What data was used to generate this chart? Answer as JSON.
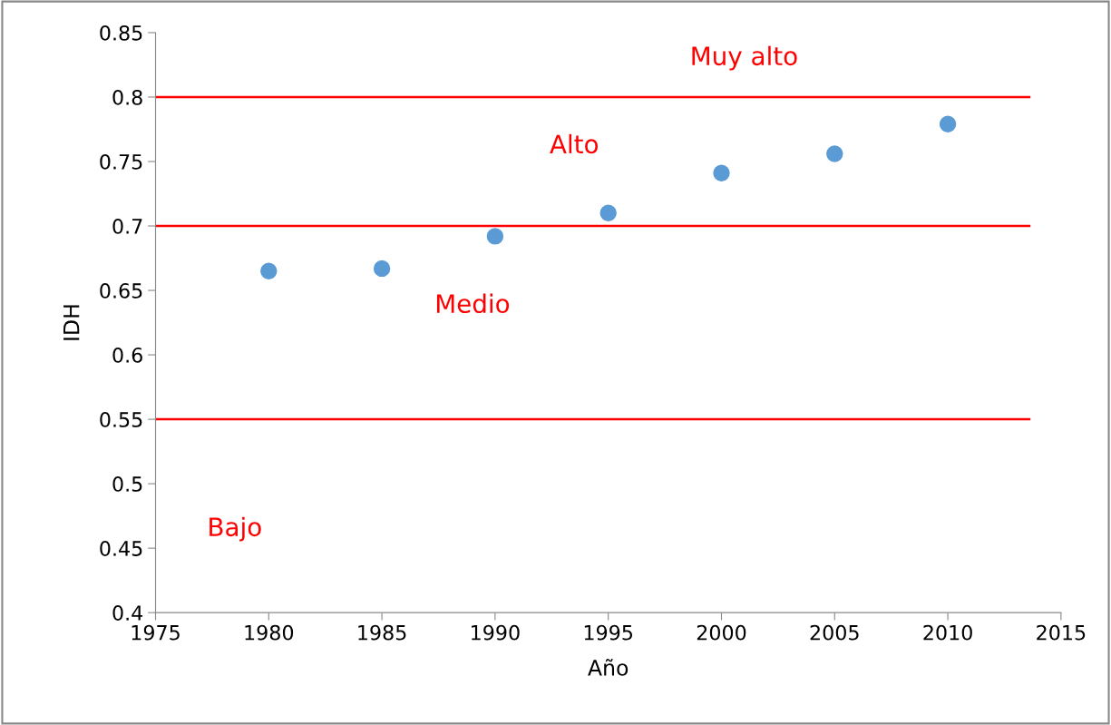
{
  "chart_data": {
    "type": "scatter",
    "xlabel": "Año",
    "ylabel": "IDH",
    "x": [
      1980,
      1985,
      1990,
      1995,
      2000,
      2005,
      2010
    ],
    "series": [
      {
        "color": "#5b9bd5",
        "values": [
          0.665,
          0.667,
          0.692,
          0.71,
          0.741,
          0.756,
          0.779
        ]
      }
    ],
    "xlim": [
      1975,
      2015
    ],
    "xticks": [
      1975,
      1980,
      1985,
      1990,
      1995,
      2000,
      2005,
      2010,
      2015
    ],
    "ylim": [
      0.4,
      0.85
    ],
    "yticks": [
      0.4,
      0.45,
      0.5,
      0.55,
      0.6,
      0.65,
      0.7,
      0.75,
      0.8,
      0.85
    ],
    "ref_lines": [
      {
        "axis": "y",
        "value": 0.8,
        "color": "#ff0000"
      },
      {
        "axis": "y",
        "value": 0.7,
        "color": "#ff0000"
      },
      {
        "axis": "y",
        "value": 0.55,
        "color": "#ff0000"
      }
    ],
    "annotations": [
      "Muy alto",
      "Alto",
      "Medio",
      "Bajo"
    ],
    "marker": "circle",
    "grid": false,
    "legend": false
  }
}
